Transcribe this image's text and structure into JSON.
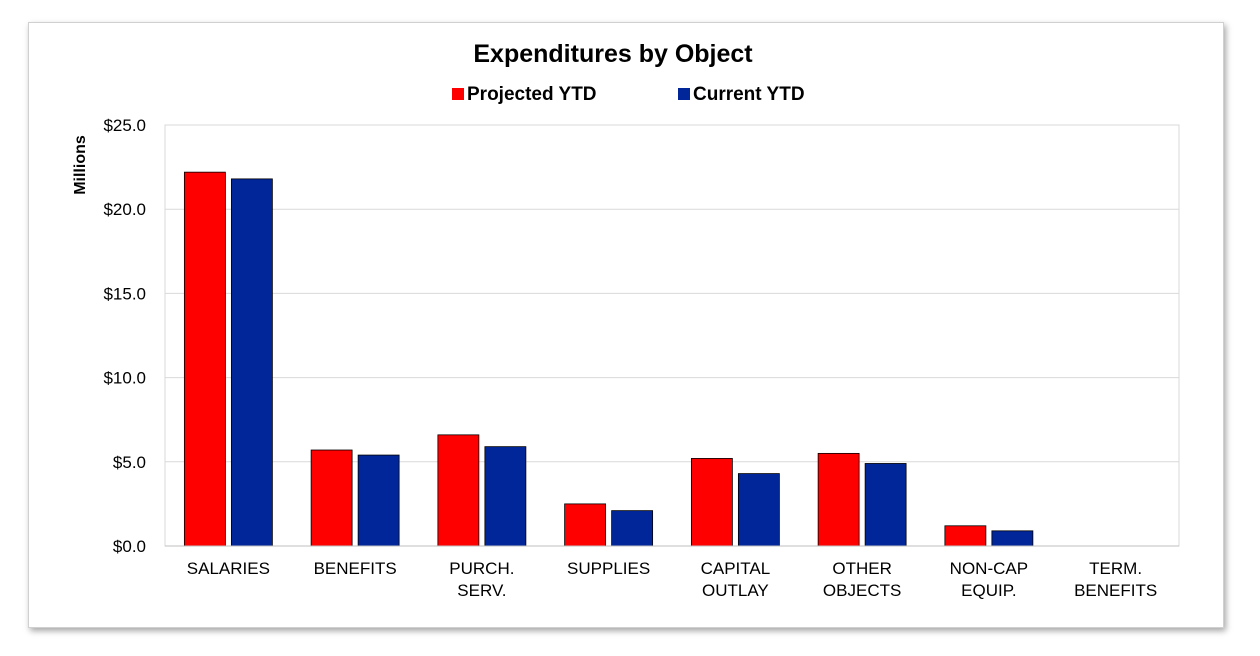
{
  "chart_data": {
    "type": "bar",
    "title": "Expenditures by Object",
    "ylabel": "Millions",
    "xlabel": "",
    "ylim": [
      0,
      25
    ],
    "yticks": [
      "$0.0",
      "$5.0",
      "$10.0",
      "$15.0",
      "$20.0",
      "$25.0"
    ],
    "grid": true,
    "legend_position": "top",
    "categories": [
      [
        "SALARIES"
      ],
      [
        "BENEFITS"
      ],
      [
        "PURCH.",
        "SERV."
      ],
      [
        "SUPPLIES"
      ],
      [
        "CAPITAL",
        "OUTLAY"
      ],
      [
        "OTHER",
        "OBJECTS"
      ],
      [
        "NON-CAP",
        "EQUIP."
      ],
      [
        "TERM.",
        "BENEFITS"
      ]
    ],
    "series": [
      {
        "name": "Projected YTD",
        "color": "#ff0000",
        "values": [
          22.2,
          5.7,
          6.6,
          2.5,
          5.2,
          5.5,
          1.2,
          0.0
        ]
      },
      {
        "name": "Current YTD",
        "color": "#002699",
        "values": [
          21.8,
          5.4,
          5.9,
          2.1,
          4.3,
          4.9,
          0.9,
          0.0
        ]
      }
    ]
  }
}
